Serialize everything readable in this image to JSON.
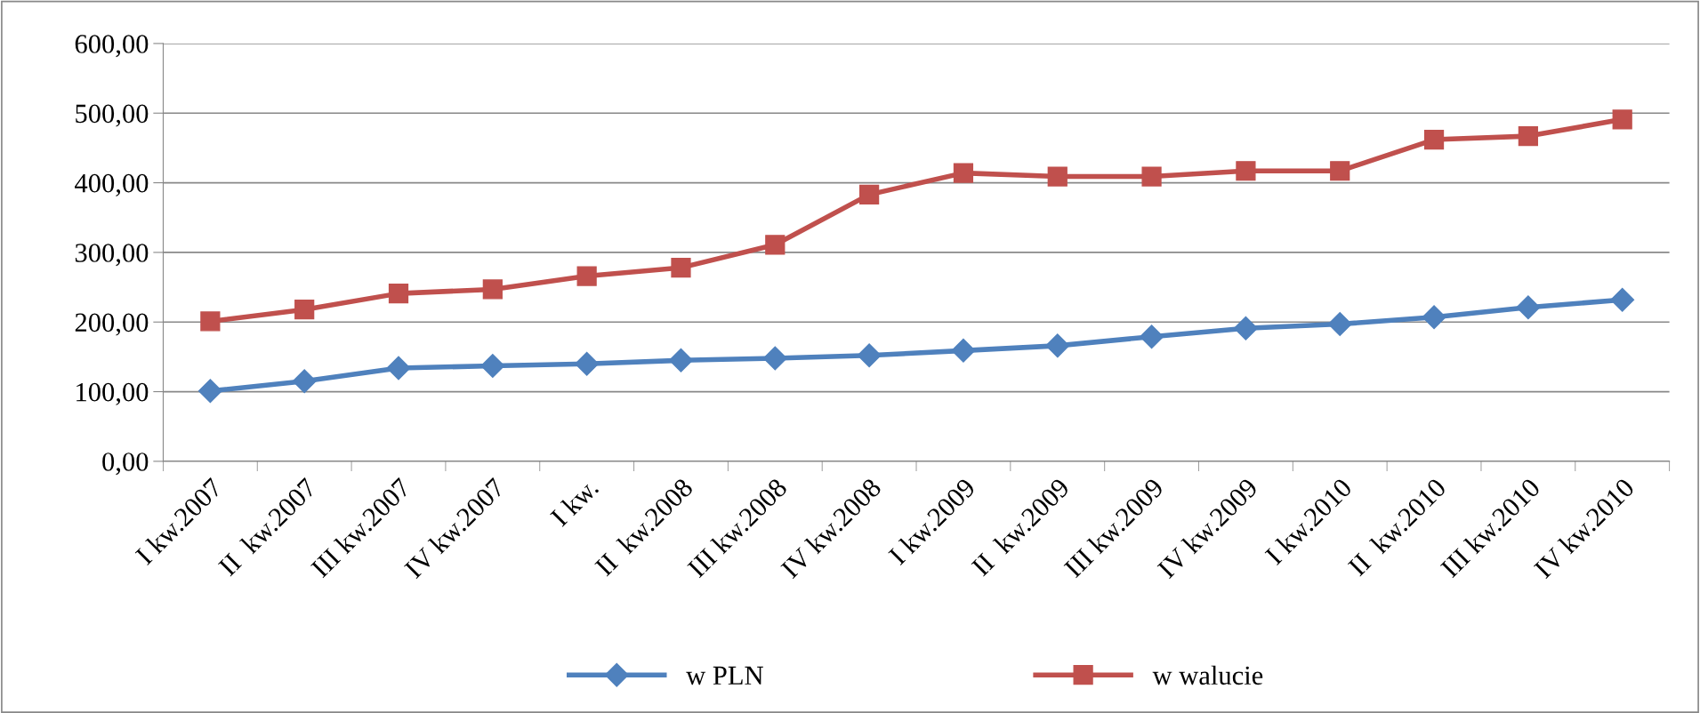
{
  "chart_data": {
    "type": "line",
    "categories": [
      "I kw.2007",
      "II  kw.2007",
      "III kw.2007",
      "IV kw.2007",
      "I kw.",
      "II  kw.2008",
      "III kw.2008",
      "IV kw.2008",
      "I kw.2009",
      "II  kw.2009",
      "III kw.2009",
      "IV kw.2009",
      "I kw.2010",
      "II  kw.2010",
      "III kw.2010",
      "IV kw.2010"
    ],
    "series": [
      {
        "name": "w PLN",
        "color": "#4f81bd",
        "marker": "diamond",
        "values": [
          101,
          115,
          134,
          137,
          140,
          145,
          148,
          152,
          159,
          166,
          179,
          191,
          197,
          207,
          221,
          232
        ]
      },
      {
        "name": "w walucie",
        "color": "#c0504d",
        "marker": "square",
        "values": [
          201,
          218,
          241,
          247,
          266,
          278,
          311,
          383,
          414,
          409,
          409,
          417,
          417,
          462,
          467,
          491
        ]
      }
    ],
    "ylim": [
      0,
      600
    ],
    "yticks": [
      {
        "value": 0,
        "label": "0,00"
      },
      {
        "value": 100,
        "label": "100,00"
      },
      {
        "value": 200,
        "label": "200,00"
      },
      {
        "value": 300,
        "label": "300,00"
      },
      {
        "value": 400,
        "label": "400,00"
      },
      {
        "value": 500,
        "label": "500,00"
      },
      {
        "value": 600,
        "label": "600,00"
      }
    ],
    "grid": "y",
    "legend": "bottom",
    "line_style": "solid"
  }
}
